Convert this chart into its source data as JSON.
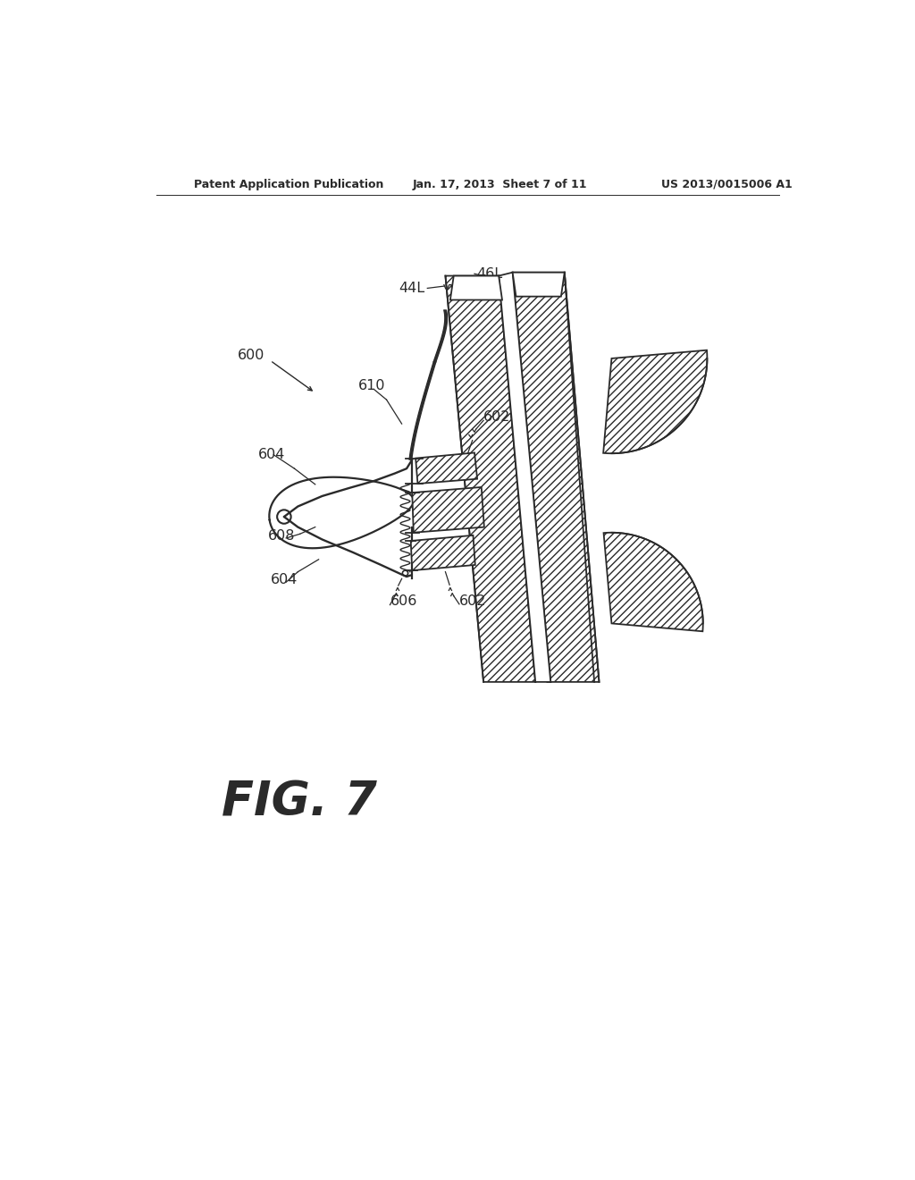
{
  "header_left": "Patent Application Publication",
  "header_mid": "Jan. 17, 2013  Sheet 7 of 11",
  "header_right": "US 2013/0015006 A1",
  "fig_label": "FIG. 7",
  "bg_color": "#ffffff",
  "line_color": "#2a2a2a"
}
